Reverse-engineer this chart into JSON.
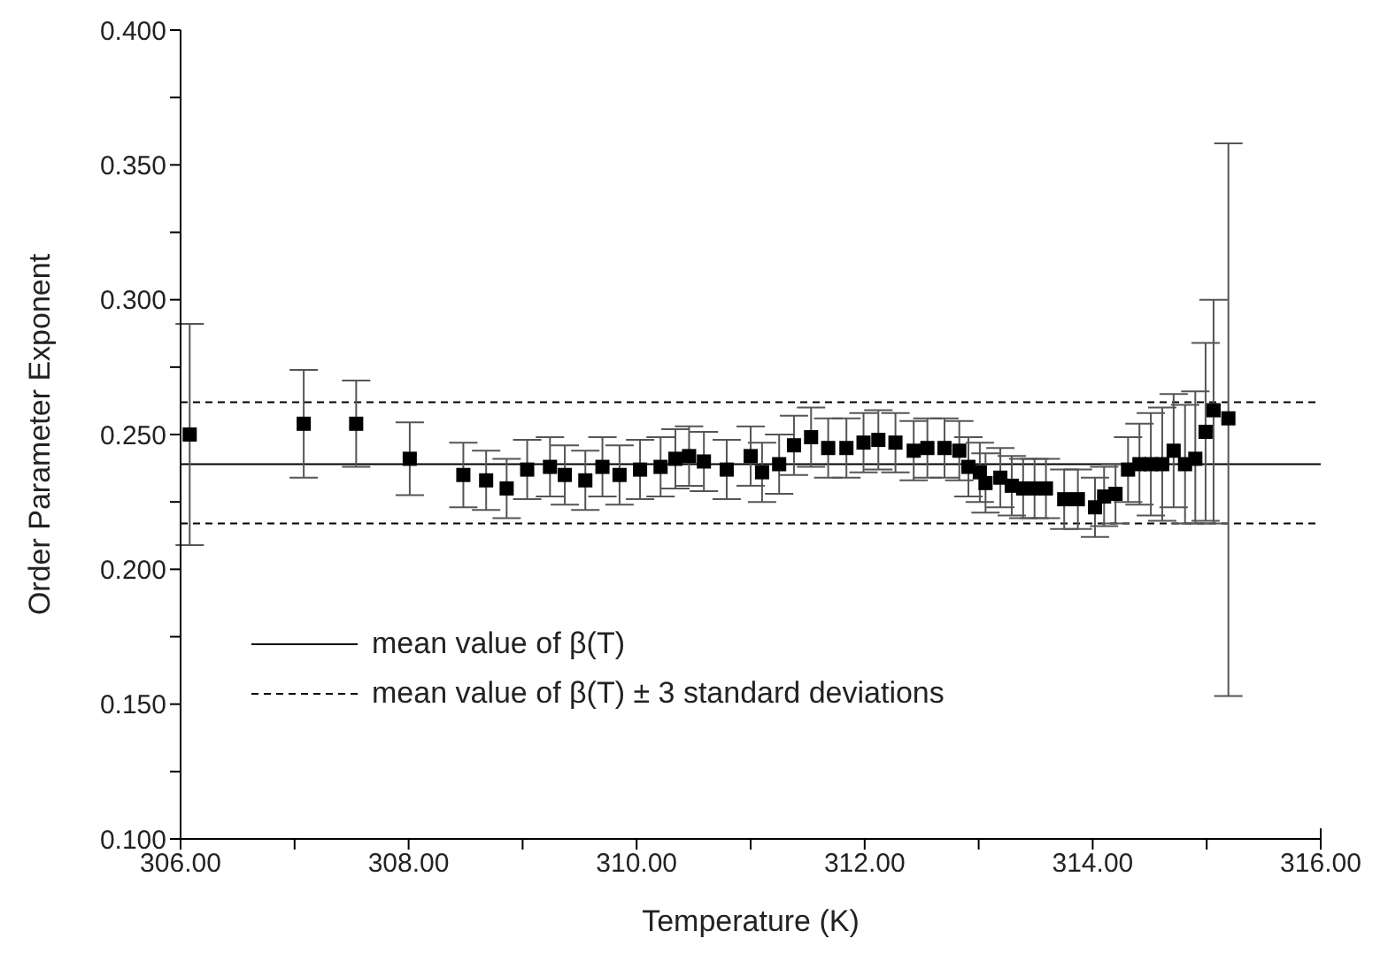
{
  "chart_data": {
    "type": "scatter",
    "xlabel": "Temperature (K)",
    "ylabel": "Order Parameter Exponent",
    "xlim": [
      306,
      316
    ],
    "xticks": [
      {
        "value": 306,
        "label": "306.00"
      },
      {
        "value": 307,
        "label": null
      },
      {
        "value": 308,
        "label": "308.00"
      },
      {
        "value": 309,
        "label": null
      },
      {
        "value": 310,
        "label": "310.00"
      },
      {
        "value": 311,
        "label": null
      },
      {
        "value": 312,
        "label": "312.00"
      },
      {
        "value": 313,
        "label": null
      },
      {
        "value": 314,
        "label": "314.00"
      },
      {
        "value": 315,
        "label": null
      },
      {
        "value": 316,
        "label": "316.00"
      }
    ],
    "ylim": [
      0.1,
      0.4
    ],
    "yticks": [
      {
        "value": 0.1,
        "label": "0.100"
      },
      {
        "value": 0.125,
        "label": null
      },
      {
        "value": 0.15,
        "label": "0.150"
      },
      {
        "value": 0.175,
        "label": null
      },
      {
        "value": 0.2,
        "label": "0.200"
      },
      {
        "value": 0.225,
        "label": null
      },
      {
        "value": 0.25,
        "label": "0.250"
      },
      {
        "value": 0.275,
        "label": null
      },
      {
        "value": 0.3,
        "label": "0.300"
      },
      {
        "value": 0.325,
        "label": null
      },
      {
        "value": 0.35,
        "label": "0.350"
      },
      {
        "value": 0.375,
        "label": null
      },
      {
        "value": 0.4,
        "label": "0.400"
      }
    ],
    "marker": "square",
    "grid": false,
    "legend": "bottom left",
    "series": [
      {
        "color": "#000000",
        "x": [
          306.08,
          307.08,
          307.54,
          308.01,
          308.48,
          308.68,
          308.86,
          309.04,
          309.24,
          309.37,
          309.55,
          309.7,
          309.85,
          310.03,
          310.21,
          310.34,
          310.46,
          310.59,
          310.79,
          311.0,
          311.1,
          311.25,
          311.38,
          311.53,
          311.68,
          311.84,
          311.99,
          312.12,
          312.27,
          312.43,
          312.55,
          312.7,
          312.83,
          312.91,
          313.01,
          313.06,
          313.19,
          313.29,
          313.39,
          313.49,
          313.59,
          313.75,
          313.87,
          314.02,
          314.1,
          314.2,
          314.31,
          314.41,
          314.51,
          314.61,
          314.71,
          314.81,
          314.9,
          314.99,
          315.06,
          315.19
        ],
        "values": [
          0.25,
          0.254,
          0.254,
          0.241,
          0.235,
          0.233,
          0.23,
          0.237,
          0.238,
          0.235,
          0.233,
          0.238,
          0.235,
          0.237,
          0.238,
          0.241,
          0.242,
          0.24,
          0.237,
          0.242,
          0.236,
          0.239,
          0.246,
          0.249,
          0.245,
          0.245,
          0.247,
          0.248,
          0.247,
          0.244,
          0.245,
          0.245,
          0.244,
          0.238,
          0.236,
          0.232,
          0.234,
          0.231,
          0.23,
          0.23,
          0.23,
          0.226,
          0.226,
          0.223,
          0.227,
          0.228,
          0.237,
          0.239,
          0.239,
          0.239,
          0.244,
          0.239,
          0.241,
          0.251,
          0.259,
          0.256
        ],
        "errors": [
          0.041,
          0.02,
          0.016,
          0.0135,
          0.012,
          0.011,
          0.011,
          0.011,
          0.011,
          0.011,
          0.011,
          0.011,
          0.011,
          0.011,
          0.011,
          0.011,
          0.011,
          0.011,
          0.011,
          0.011,
          0.011,
          0.011,
          0.011,
          0.011,
          0.011,
          0.011,
          0.011,
          0.011,
          0.011,
          0.011,
          0.011,
          0.011,
          0.011,
          0.011,
          0.011,
          0.011,
          0.011,
          0.011,
          0.011,
          0.011,
          0.011,
          0.011,
          0.011,
          0.011,
          0.011,
          0.011,
          0.012,
          0.015,
          0.019,
          0.021,
          0.021,
          0.022,
          [
            0.217,
            0.266
          ],
          [
            0.218,
            0.284
          ],
          [
            0.217,
            0.3
          ],
          [
            0.153,
            0.358
          ]
        ]
      }
    ],
    "ref_lines": [
      {
        "axis": "y",
        "value": 0.239,
        "label": "mean value of β(T)",
        "color": "#000000",
        "line_style": "solid"
      },
      {
        "axis": "y",
        "value": 0.262,
        "label": "mean value of β(T) ± 3 standard deviations",
        "color": "#000000",
        "line_style": "dashed"
      },
      {
        "axis": "y",
        "value": 0.217,
        "label": null,
        "color": "#000000",
        "line_style": "dashed"
      }
    ]
  }
}
